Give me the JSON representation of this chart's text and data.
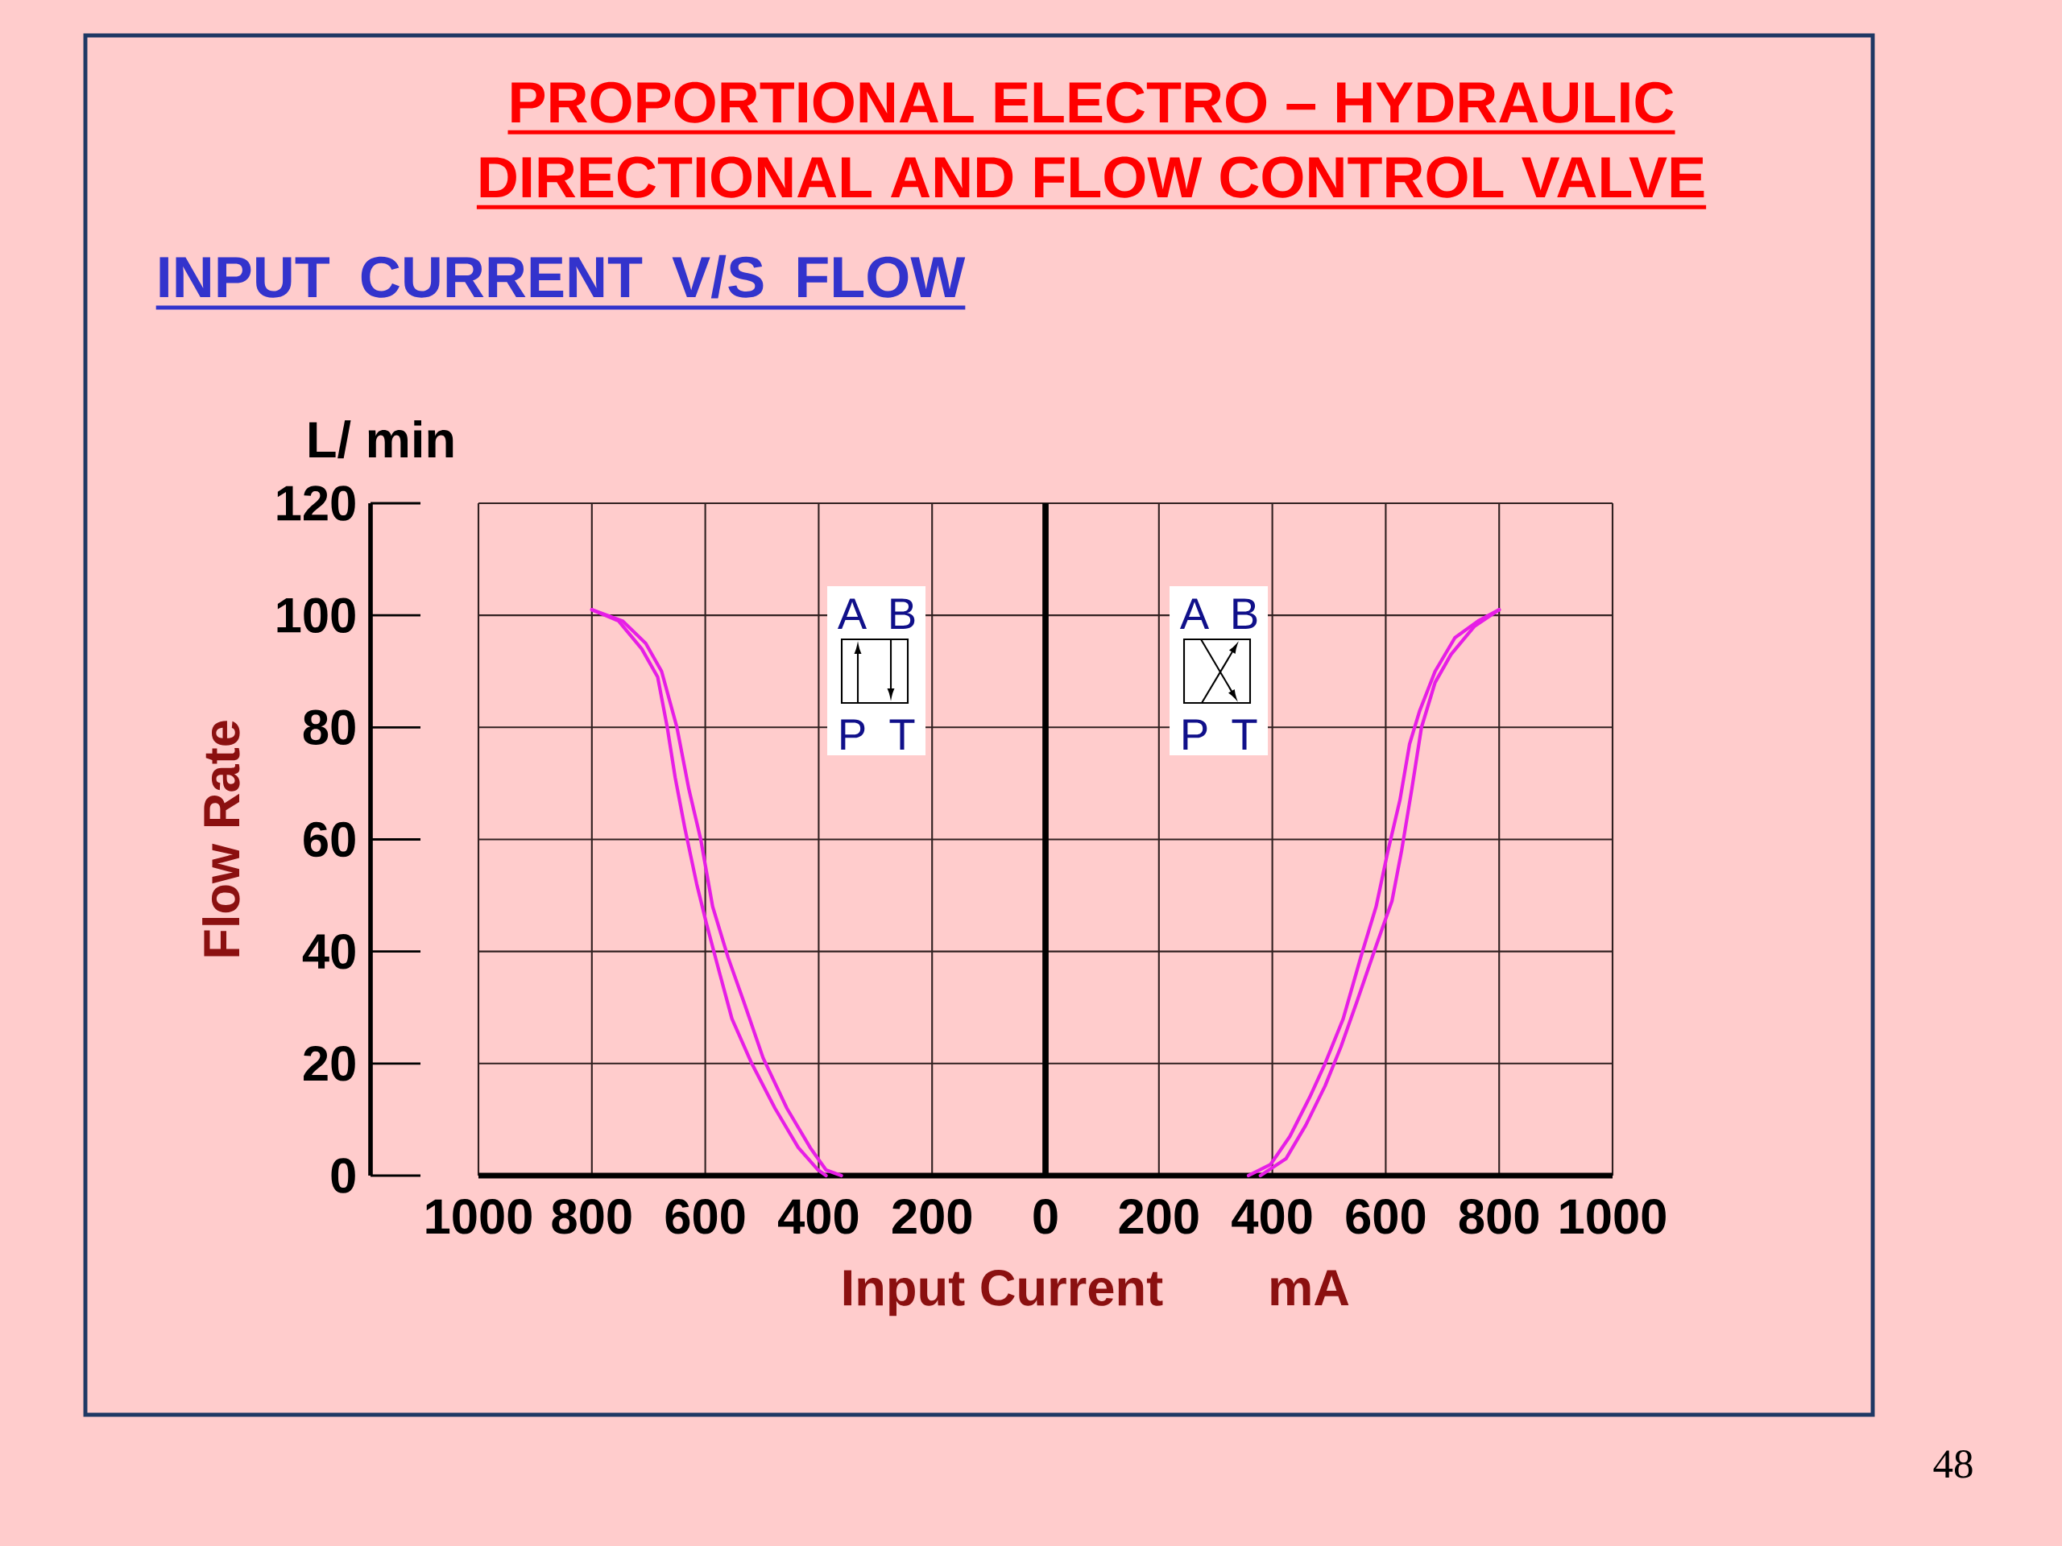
{
  "chart_data": {
    "type": "line",
    "title": "PROPORTIONAL ELECTRO – HYDRAULIC DIRECTIONAL AND  FLOW  CONTROL  VALVE",
    "subtitle": "INPUT  CURRENT  V/S  FLOW",
    "xlabel": "Input Current",
    "ylabel": "Flow Rate",
    "annotations": [
      "L/ min",
      "mA",
      "A",
      "B",
      "P",
      "T",
      "A",
      "B",
      "P",
      "T",
      "48"
    ],
    "xlim": [
      -1000,
      1000
    ],
    "xticks": [
      {
        "value": -1000,
        "label": "1000"
      },
      {
        "value": -800,
        "label": "800"
      },
      {
        "value": -600,
        "label": "600"
      },
      {
        "value": -400,
        "label": "400"
      },
      {
        "value": -200,
        "label": "200"
      },
      0,
      200,
      400,
      600,
      800,
      1000
    ],
    "ylim": [
      0,
      120
    ],
    "yticks": [
      0,
      20,
      40,
      60,
      80,
      100,
      120
    ],
    "grid": true,
    "line_style": "solid",
    "ref_lines": [
      {
        "axis": "x",
        "value": 0,
        "color": "#000000"
      }
    ],
    "series": [
      {
        "color": "#e61ee6",
        "x": [
          -800,
          -753,
          -712,
          -684,
          -667,
          -653,
          -636,
          -615,
          -598,
          -577,
          -553,
          -518,
          -477,
          -436,
          -401,
          -387
        ],
        "values": [
          101,
          99,
          94,
          89,
          80,
          71,
          62,
          52,
          45,
          37,
          28,
          20,
          12,
          5,
          1,
          0
        ]
      },
      {
        "color": "#e61ee6",
        "x": [
          -800,
          -746,
          -705,
          -677,
          -650,
          -629,
          -608,
          -587,
          -560,
          -532,
          -498,
          -456,
          -415,
          -387,
          -360
        ],
        "values": [
          101,
          99,
          95,
          90,
          80,
          69,
          60,
          48,
          39,
          31,
          21,
          12,
          5,
          1,
          0
        ]
      },
      {
        "color": "#e61ee6",
        "x": [
          358,
          397,
          431,
          466,
          493,
          525,
          556,
          583,
          604,
          625,
          642,
          660,
          687,
          722,
          763,
          800
        ],
        "values": [
          0,
          2,
          7,
          14,
          20,
          28,
          39,
          48,
          58,
          67,
          77,
          83,
          90,
          96,
          99,
          101
        ]
      },
      {
        "color": "#e61ee6",
        "x": [
          379,
          424,
          459,
          493,
          521,
          549,
          583,
          611,
          628,
          646,
          663,
          687,
          715,
          756,
          800
        ],
        "values": [
          0,
          3,
          9,
          16,
          23,
          31,
          41,
          49,
          58,
          69,
          80,
          88,
          93,
          98,
          101
        ]
      }
    ]
  }
}
